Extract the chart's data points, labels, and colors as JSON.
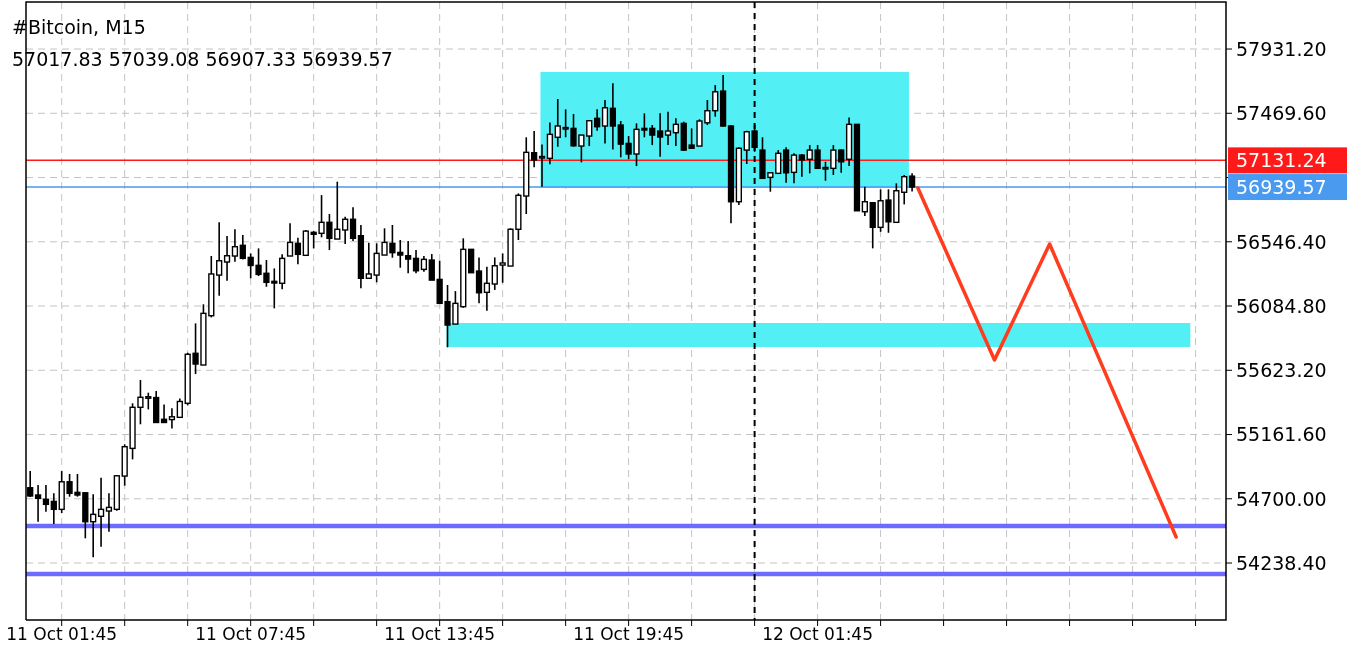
{
  "chart_data": {
    "type": "candlestick",
    "title": "#Bitcoin, M15",
    "subtitle": "57017.83 57039.08 56907.33 56939.57",
    "x": [
      "--10-11T00:45",
      "--10-11T01:00",
      "--10-11T01:15",
      "--10-11T01:30",
      "--10-11T01:45",
      "--10-11T02:00",
      "--10-11T02:15",
      "--10-11T02:30",
      "--10-11T02:45",
      "--10-11T03:00",
      "--10-11T03:15",
      "--10-11T03:30",
      "--10-11T03:45",
      "--10-11T04:00",
      "--10-11T04:15",
      "--10-11T04:30",
      "--10-11T04:45",
      "--10-11T05:00",
      "--10-11T05:15",
      "--10-11T05:30",
      "--10-11T05:45",
      "--10-11T06:00",
      "--10-11T06:15",
      "--10-11T06:30",
      "--10-11T06:45",
      "--10-11T07:00",
      "--10-11T07:15",
      "--10-11T07:30",
      "--10-11T07:45",
      "--10-11T08:00",
      "--10-11T08:15",
      "--10-11T08:30",
      "--10-11T08:45",
      "--10-11T09:00",
      "--10-11T09:15",
      "--10-11T09:30",
      "--10-11T09:45",
      "--10-11T10:00",
      "--10-11T10:15",
      "--10-11T10:30",
      "--10-11T10:45",
      "--10-11T11:00",
      "--10-11T11:15",
      "--10-11T11:30",
      "--10-11T11:45",
      "--10-11T12:00",
      "--10-11T12:15",
      "--10-11T12:30",
      "--10-11T12:45",
      "--10-11T13:00",
      "--10-11T13:15",
      "--10-11T13:30",
      "--10-11T13:45",
      "--10-11T14:00",
      "--10-11T14:15",
      "--10-11T14:30",
      "--10-11T14:45",
      "--10-11T15:00",
      "--10-11T15:15",
      "--10-11T15:30",
      "--10-11T15:45",
      "--10-11T16:00",
      "--10-11T16:15",
      "--10-11T16:30",
      "--10-11T16:45",
      "--10-11T17:00",
      "--10-11T17:15",
      "--10-11T17:30",
      "--10-11T17:45",
      "--10-11T18:00",
      "--10-11T18:15",
      "--10-11T18:30",
      "--10-11T18:45",
      "--10-11T19:00",
      "--10-11T19:15",
      "--10-11T19:30",
      "--10-11T19:45",
      "--10-11T20:00",
      "--10-11T20:15",
      "--10-11T20:30",
      "--10-11T20:45",
      "--10-11T21:00",
      "--10-11T21:15",
      "--10-11T21:30",
      "--10-11T21:45",
      "--10-11T22:00",
      "--10-11T22:15",
      "--10-11T22:30",
      "--10-11T22:45",
      "--10-11T23:00",
      "--10-11T23:15",
      "--10-11T23:30",
      "--10-11T23:45",
      "--10-12T00:00",
      "--10-12T00:15",
      "--10-12T00:30",
      "--10-12T00:45",
      "--10-12T01:00",
      "--10-12T01:15",
      "--10-12T01:30",
      "--10-12T01:45",
      "--10-12T02:00",
      "--10-12T02:15",
      "--10-12T02:30",
      "--10-12T02:45",
      "--10-12T03:00",
      "--10-12T03:15",
      "--10-12T03:30",
      "--10-12T03:45",
      "--10-12T04:00",
      "--10-12T04:15",
      "--10-12T04:30",
      "--10-12T04:45"
    ],
    "ohlc": [
      [
        54779,
        54899,
        54712,
        54720
      ],
      [
        54727,
        54799,
        54535,
        54703
      ],
      [
        54696,
        54799,
        54607,
        54660
      ],
      [
        54681,
        54739,
        54518,
        54624
      ],
      [
        54624,
        54899,
        54597,
        54822
      ],
      [
        54822,
        54878,
        54715,
        54739
      ],
      [
        54746,
        54878,
        54715,
        54727
      ],
      [
        54743,
        54743,
        54416,
        54535
      ],
      [
        54535,
        54732,
        54279,
        54588
      ],
      [
        54574,
        54851,
        54355,
        54624
      ],
      [
        54612,
        54739,
        54463,
        54638
      ],
      [
        54624,
        54870,
        54614,
        54865
      ],
      [
        54863,
        55091,
        54794,
        55074
      ],
      [
        55062,
        55386,
        54983,
        55357
      ],
      [
        55357,
        55553,
        55235,
        55429
      ],
      [
        55424,
        55462,
        55342,
        55433
      ],
      [
        55427,
        55474,
        55246,
        55248
      ],
      [
        55271,
        55378,
        55246,
        55248
      ],
      [
        55269,
        55350,
        55205,
        55289
      ],
      [
        55285,
        55421,
        55285,
        55399
      ],
      [
        55386,
        55749,
        55371,
        55738
      ],
      [
        55745,
        55960,
        55596,
        55668
      ],
      [
        55661,
        56097,
        55661,
        56032
      ],
      [
        56015,
        56444,
        56003,
        56315
      ],
      [
        56307,
        56686,
        56159,
        56410
      ],
      [
        56401,
        56588,
        56266,
        56446
      ],
      [
        56444,
        56636,
        56403,
        56511
      ],
      [
        56521,
        56595,
        56420,
        56427
      ],
      [
        56434,
        56463,
        56284,
        56376
      ],
      [
        56377,
        56499,
        56300,
        56312
      ],
      [
        56320,
        56415,
        56223,
        56255
      ],
      [
        56262,
        56355,
        56068,
        56250
      ],
      [
        56248,
        56456,
        56205,
        56427
      ],
      [
        56444,
        56679,
        56444,
        56542
      ],
      [
        56535,
        56575,
        56384,
        56456
      ],
      [
        56449,
        56631,
        56449,
        56623
      ],
      [
        56614,
        56623,
        56499,
        56600
      ],
      [
        56607,
        56882,
        56578,
        56686
      ],
      [
        56686,
        56746,
        56487,
        56571
      ],
      [
        56566,
        56978,
        56566,
        56636
      ],
      [
        56631,
        56726,
        56530,
        56708
      ],
      [
        56708,
        56794,
        56552,
        56571
      ],
      [
        56590,
        56667,
        56212,
        56284
      ],
      [
        56284,
        56539,
        56284,
        56315
      ],
      [
        56307,
        56535,
        56255,
        56463
      ],
      [
        56451,
        56643,
        56451,
        56542
      ],
      [
        56535,
        56667,
        56432,
        56468
      ],
      [
        56470,
        56559,
        56360,
        56451
      ],
      [
        56446,
        56552,
        56320,
        56422
      ],
      [
        56427,
        56487,
        56320,
        56338
      ],
      [
        56348,
        56444,
        56331,
        56420
      ],
      [
        56415,
        56458,
        56271,
        56271
      ],
      [
        56276,
        56410,
        56104,
        56104
      ],
      [
        56116,
        56236,
        55788,
        55948
      ],
      [
        55955,
        56192,
        55955,
        56104
      ],
      [
        56080,
        56571,
        56072,
        56492
      ],
      [
        56492,
        56494,
        56324,
        56324
      ],
      [
        56336,
        56434,
        56104,
        56180
      ],
      [
        56183,
        56367,
        56051,
        56248
      ],
      [
        56243,
        56434,
        56200,
        56374
      ],
      [
        56379,
        56463,
        56252,
        56394
      ],
      [
        56372,
        56643,
        56372,
        56636
      ],
      [
        56636,
        56894,
        56559,
        56880
      ],
      [
        56875,
        57297,
        56746,
        57189
      ],
      [
        57186,
        57342,
        57081,
        57134
      ],
      [
        57155,
        57246,
        56942,
        57159
      ],
      [
        57146,
        57404,
        57103,
        57318
      ],
      [
        57297,
        57572,
        57229,
        57378
      ],
      [
        57363,
        57498,
        57297,
        57367
      ],
      [
        57361,
        57464,
        57229,
        57236
      ],
      [
        57234,
        57313,
        57117,
        57313
      ],
      [
        57306,
        57416,
        57234,
        57416
      ],
      [
        57433,
        57498,
        57344,
        57373
      ],
      [
        57378,
        57565,
        57253,
        57509
      ],
      [
        57505,
        57685,
        57210,
        57378
      ],
      [
        57385,
        57414,
        57153,
        57248
      ],
      [
        57253,
        57306,
        57139,
        57177
      ],
      [
        57177,
        57397,
        57090,
        57354
      ],
      [
        57361,
        57469,
        57297,
        57349
      ],
      [
        57361,
        57385,
        57241,
        57313
      ],
      [
        57342,
        57469,
        57157,
        57299
      ],
      [
        57313,
        57481,
        57241,
        57342
      ],
      [
        57330,
        57433,
        57234,
        57390
      ],
      [
        57397,
        57409,
        57200,
        57205
      ],
      [
        57241,
        57361,
        57218,
        57218
      ],
      [
        57234,
        57426,
        57234,
        57414
      ],
      [
        57401,
        57565,
        57385,
        57488
      ],
      [
        57488,
        57672,
        57445,
        57624
      ],
      [
        57629,
        57744,
        57373,
        57378
      ],
      [
        57378,
        57385,
        56679,
        56834
      ],
      [
        56834,
        57225,
        56810,
        57218
      ],
      [
        57205,
        57344,
        57105,
        57337
      ],
      [
        57342,
        57385,
        57193,
        57225
      ],
      [
        57205,
        57297,
        57002,
        57002
      ],
      [
        57009,
        57042,
        56906,
        57042
      ],
      [
        57038,
        57205,
        57038,
        57182
      ],
      [
        57205,
        57225,
        56970,
        57042
      ],
      [
        57045,
        57182,
        56966,
        57169
      ],
      [
        57169,
        57177,
        57014,
        57134
      ],
      [
        57139,
        57241,
        57038,
        57205
      ],
      [
        57205,
        57241,
        57074,
        57074
      ],
      [
        57076,
        57121,
        56985,
        57080
      ],
      [
        57074,
        57241,
        57026,
        57205
      ],
      [
        57205,
        57210,
        57042,
        57121
      ],
      [
        57139,
        57440,
        57090,
        57390
      ],
      [
        57390,
        57390,
        56769,
        56769
      ],
      [
        56762,
        56942,
        56731,
        56834
      ],
      [
        56827,
        56827,
        56499,
        56650
      ],
      [
        56650,
        56923,
        56618,
        56841
      ],
      [
        56846,
        56923,
        56611,
        56690
      ],
      [
        56686,
        56966,
        56686,
        56913
      ],
      [
        56902,
        57026,
        56815,
        57014
      ],
      [
        57017.83,
        57039.08,
        56907.33,
        56939.57
      ]
    ],
    "series": [
      {
        "type": "area",
        "color": "#52f0f5",
        "x": [
          "--10-11T16:57",
          "--10-12T04:39"
        ],
        "values": [
          null,
          null
        ],
        "lower": [
          56933,
          56933
        ],
        "upper": [
          57766,
          57766
        ]
      },
      {
        "type": "area",
        "color": "#52f0f5",
        "x": [
          "--10-11T13:58",
          "--10-12T13:35"
        ],
        "values": [
          null,
          null
        ],
        "lower": [
          55790,
          55790
        ],
        "upper": [
          55963,
          55963
        ]
      },
      {
        "type": "line",
        "color": "#ff3c1e",
        "x": [
          "--10-12T04:56",
          "--10-12T07:22",
          "--10-12T09:07",
          "--10-12T13:08"
        ],
        "values": [
          56933,
          55697,
          56530,
          54425
        ]
      }
    ],
    "xlim": [
      "--10-11T00:37",
      "--10-12T14:43"
    ],
    "xticks": [
      {
        "value": "--10-11T01:45",
        "label": "11 Oct 01:45"
      },
      {
        "value": "--10-11T03:45",
        "label": null
      },
      {
        "value": "--10-11T05:45",
        "label": null
      },
      {
        "value": "--10-11T07:45",
        "label": "11 Oct 07:45"
      },
      {
        "value": "--10-11T09:45",
        "label": null
      },
      {
        "value": "--10-11T11:45",
        "label": null
      },
      {
        "value": "--10-11T13:45",
        "label": "11 Oct 13:45"
      },
      {
        "value": "--10-11T15:45",
        "label": null
      },
      {
        "value": "--10-11T17:45",
        "label": null
      },
      {
        "value": "--10-11T19:45",
        "label": "11 Oct 19:45"
      },
      {
        "value": "--10-11T21:45",
        "label": null
      },
      {
        "value": "--10-11T23:45",
        "label": null
      },
      {
        "value": "--10-12T01:45",
        "label": "12 Oct 01:45"
      },
      {
        "value": "--10-12T03:45",
        "label": null
      },
      {
        "value": "--10-12T05:45",
        "label": null
      },
      {
        "value": "--10-12T07:45",
        "label": null
      },
      {
        "value": "--10-12T09:45",
        "label": null
      },
      {
        "value": "--10-12T11:45",
        "label": null
      },
      {
        "value": "--10-12T13:45",
        "label": null
      }
    ],
    "ylim": [
      53829,
      58269
    ],
    "yticks": [
      {
        "value": 57931.2,
        "label": "57931.20"
      },
      {
        "value": 57469.6,
        "label": "57469.60"
      },
      {
        "value": 57008,
        "label": null
      },
      {
        "value": 56546.4,
        "label": "56546.40"
      },
      {
        "value": 56084.8,
        "label": "56084.80"
      },
      {
        "value": 55623.2,
        "label": "55623.20"
      },
      {
        "value": 55161.6,
        "label": "55161.60"
      },
      {
        "value": 54700,
        "label": "54700.00"
      },
      {
        "value": 54238.4,
        "label": "54238.40"
      }
    ],
    "grid": true,
    "ref_lines": [
      {
        "axis": "y",
        "value": 57131.24,
        "label": "57131.24",
        "color": "#ff1a1a"
      },
      {
        "axis": "y",
        "value": 56939.57,
        "label": "56939.57",
        "color": "#4a9af0"
      },
      {
        "axis": "y",
        "value": 54504,
        "color": "#6b6bff"
      },
      {
        "axis": "y",
        "value": 54159,
        "color": "#6b6bff"
      },
      {
        "axis": "x",
        "value": "--10-11T23:45",
        "color": "#000000",
        "line_style": "dashed"
      }
    ]
  }
}
